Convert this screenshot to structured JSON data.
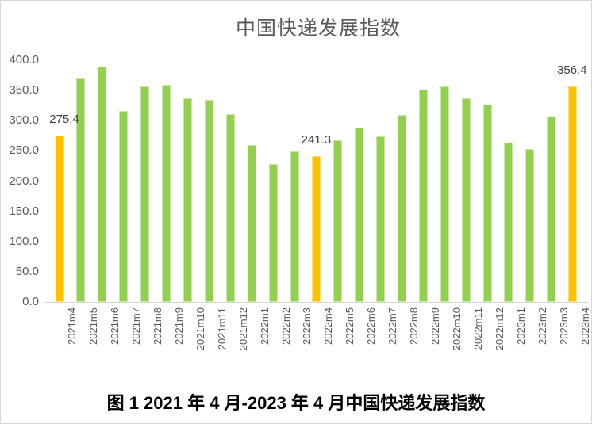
{
  "page": {
    "caption": "图 1  2021 年 4 月-2023 年 4 月中国快递发展指数"
  },
  "chart_data": {
    "type": "bar",
    "title": "中国快递发展指数",
    "xlabel": "",
    "ylabel": "",
    "ylim": [
      0,
      400
    ],
    "grid": false,
    "legend": false,
    "categories": [
      "2021m4",
      "2021m5",
      "2021m6",
      "2021m7",
      "2021m8",
      "2021m9",
      "2021m10",
      "2021m11",
      "2021m12",
      "2022m1",
      "2022m2",
      "2022m3",
      "2022m4",
      "2022m5",
      "2022m6",
      "2022m7",
      "2022m8",
      "2022m9",
      "2022m10",
      "2022m11",
      "2022m12",
      "2023m1",
      "2023m2",
      "2023m3",
      "2023m4"
    ],
    "values": [
      275.4,
      370,
      390,
      316,
      357,
      359,
      337,
      334,
      311,
      260,
      228,
      249,
      241.3,
      268,
      289,
      274,
      310,
      352,
      357,
      337,
      326,
      263,
      253,
      307,
      356.4
    ],
    "highlight_indices": [
      0,
      12,
      24
    ],
    "annotations": [
      {
        "index": 0,
        "text": "275.4",
        "dx": 6
      },
      {
        "index": 12,
        "text": "241.3",
        "dx": 0
      },
      {
        "index": 24,
        "text": "356.4",
        "dx": -1
      }
    ],
    "ytick_values": [
      0,
      50,
      100,
      150,
      200,
      250,
      300,
      350,
      400
    ],
    "ytick_labels": [
      "0.0",
      "50.0",
      "100.0",
      "150.0",
      "200.0",
      "250.0",
      "300.0",
      "350.0",
      "400.0"
    ],
    "colors": {
      "bar": "#92D050",
      "highlight": "#FFC000",
      "title_text": "#595959",
      "axis_text": "#595959",
      "data_label_text": "#404040",
      "axis_line": "#D6D6D6"
    }
  }
}
